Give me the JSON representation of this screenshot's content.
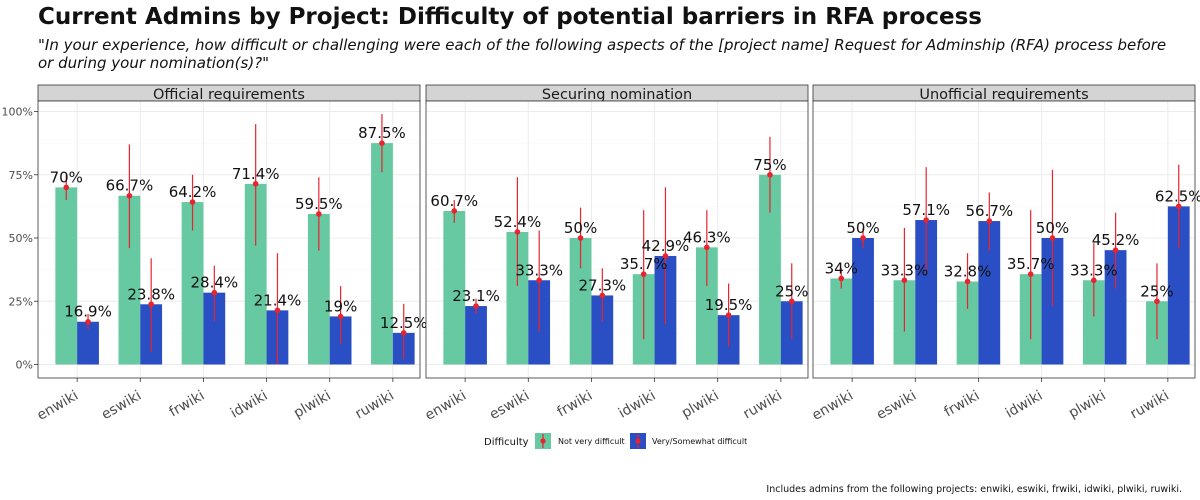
{
  "title": "Current Admins by Project: Difficulty of potential barriers in RFA process",
  "subtitle": "\"In your experience, how difficult or challenging were each of the following aspects of the [project name] Request for Adminship (RFA) process before or during your nomination(s)?\"",
  "caption": "Includes admins from the following projects: enwiki, eswiki, frwiki, idwiki, plwiki, ruwiki.",
  "colors": {
    "not_very": "#66c9a1",
    "very_somewhat": "#2a4ec4",
    "error": "#e8242f",
    "strip": "#d4d4d4",
    "grid": "#ececec"
  },
  "chart_data": {
    "type": "bar",
    "yaxis": {
      "ylim": [
        0,
        1
      ],
      "ticks": [
        0,
        0.25,
        0.5,
        0.75,
        1
      ],
      "tick_labels": [
        "0%",
        "25%",
        "50%",
        "75%",
        "100%"
      ]
    },
    "categories": [
      "enwiki",
      "eswiki",
      "frwiki",
      "idwiki",
      "plwiki",
      "ruwiki"
    ],
    "legend": {
      "title": "Difficulty",
      "entries": [
        "Not very difficult",
        "Very/Somewhat difficult"
      ],
      "position": "bottom"
    },
    "panels": [
      {
        "name": "Official requirements",
        "series": [
          {
            "name": "Not very difficult",
            "values": [
              0.7,
              0.667,
              0.642,
              0.714,
              0.595,
              0.875
            ],
            "labels": [
              "70%",
              "66.7%",
              "64.2%",
              "71.4%",
              "59.5%",
              "87.5%"
            ],
            "low": [
              0.65,
              0.46,
              0.53,
              0.47,
              0.45,
              0.76
            ],
            "high": [
              0.75,
              0.87,
              0.75,
              0.95,
              0.74,
              0.99
            ]
          },
          {
            "name": "Very/Somewhat difficult",
            "values": [
              0.169,
              0.238,
              0.284,
              0.214,
              0.19,
              0.125
            ],
            "labels": [
              "16.9%",
              "23.8%",
              "28.4%",
              "21.4%",
              "19%",
              "12.5%"
            ],
            "low": [
              0.14,
              0.05,
              0.17,
              0.0,
              0.08,
              0.02
            ],
            "high": [
              0.2,
              0.42,
              0.39,
              0.44,
              0.31,
              0.24
            ]
          }
        ]
      },
      {
        "name": "Securing nomination",
        "series": [
          {
            "name": "Not very difficult",
            "values": [
              0.607,
              0.524,
              0.5,
              0.357,
              0.463,
              0.75
            ],
            "labels": [
              "60.7%",
              "52.4%",
              "50%",
              "35.7%",
              "46.3%",
              "75%"
            ],
            "low": [
              0.56,
              0.31,
              0.38,
              0.1,
              0.31,
              0.6
            ],
            "high": [
              0.65,
              0.74,
              0.62,
              0.61,
              0.61,
              0.9
            ]
          },
          {
            "name": "Very/Somewhat difficult",
            "values": [
              0.231,
              0.333,
              0.273,
              0.429,
              0.195,
              0.25
            ],
            "labels": [
              "23.1%",
              "33.3%",
              "27.3%",
              "42.9%",
              "19.5%",
              "25%"
            ],
            "low": [
              0.2,
              0.13,
              0.17,
              0.16,
              0.07,
              0.1
            ],
            "high": [
              0.26,
              0.53,
              0.38,
              0.7,
              0.32,
              0.4
            ]
          }
        ]
      },
      {
        "name": "Unofficial requirements",
        "series": [
          {
            "name": "Not very difficult",
            "values": [
              0.34,
              0.333,
              0.328,
              0.357,
              0.333,
              0.25
            ],
            "labels": [
              "34%",
              "33.3%",
              "32.8%",
              "35.7%",
              "33.3%",
              "25%"
            ],
            "low": [
              0.3,
              0.13,
              0.22,
              0.1,
              0.19,
              0.1
            ],
            "high": [
              0.38,
              0.54,
              0.44,
              0.61,
              0.48,
              0.4
            ]
          },
          {
            "name": "Very/Somewhat difficult",
            "values": [
              0.5,
              0.571,
              0.567,
              0.5,
              0.452,
              0.625
            ],
            "labels": [
              "50%",
              "57.1%",
              "56.7%",
              "50%",
              "45.2%",
              "62.5%"
            ],
            "low": [
              0.46,
              0.36,
              0.45,
              0.23,
              0.3,
              0.46
            ],
            "high": [
              0.54,
              0.78,
              0.68,
              0.77,
              0.6,
              0.79
            ]
          }
        ]
      }
    ]
  }
}
